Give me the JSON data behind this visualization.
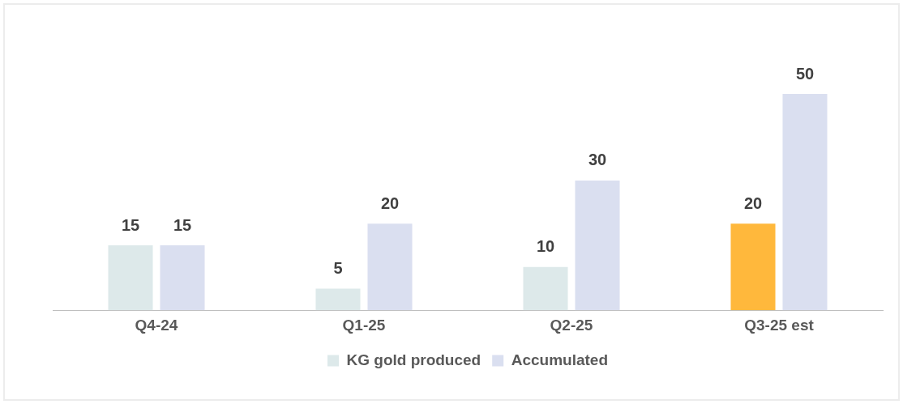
{
  "chart_data": {
    "type": "bar",
    "categories": [
      "Q4-24",
      "Q1-25",
      "Q2-25",
      "Q3-25 est"
    ],
    "series": [
      {
        "name": "KG gold produced",
        "color": "#dde9ea",
        "colors": [
          "#dde9ea",
          "#dde9ea",
          "#dde9ea",
          "#ffb83c"
        ],
        "values": [
          15,
          5,
          10,
          20
        ]
      },
      {
        "name": "Accumulated",
        "color": "#dadff0",
        "values": [
          15,
          20,
          30,
          50
        ]
      }
    ],
    "data_labels": true,
    "legend": "bottom",
    "grid": false
  }
}
